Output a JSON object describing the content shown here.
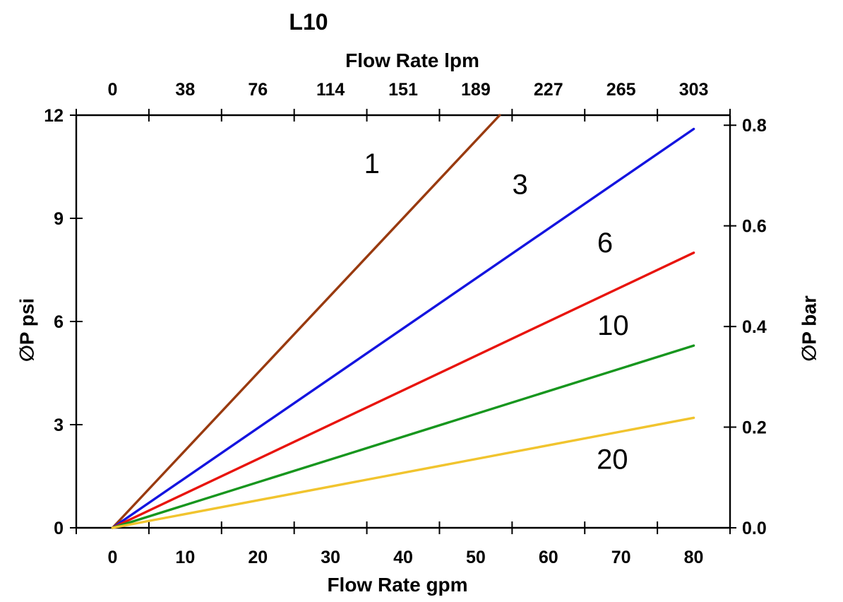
{
  "chart_data": {
    "type": "line",
    "title": "L10",
    "x_axis_bottom": {
      "label": "Flow Rate gpm",
      "tick_labels": [
        "0",
        "10",
        "20",
        "30",
        "40",
        "50",
        "60",
        "70",
        "80"
      ],
      "min": 0,
      "max": 80
    },
    "x_axis_top": {
      "label": "Flow Rate lpm",
      "tick_labels": [
        "0",
        "38",
        "76",
        "114",
        "151",
        "189",
        "227",
        "265",
        "303"
      ]
    },
    "y_axis_left": {
      "label": "∅P psi",
      "tick_labels": [
        "0",
        "3",
        "6",
        "9",
        "12"
      ],
      "min": 0,
      "max": 12
    },
    "y_axis_right": {
      "label": "∅P bar",
      "tick_labels": [
        "0.0",
        "0.2",
        "0.4",
        "0.6",
        "0.8"
      ],
      "min": 0,
      "max": 0.82
    },
    "grid": false,
    "legend": "none (series labeled inline)",
    "axis_style": "tick marks at category boundaries, labels centered between ticks; full plot border box",
    "series": [
      {
        "label": "1",
        "color": "#993A0F",
        "points_gpm_psi": [
          [
            0,
            0
          ],
          [
            53.3,
            12
          ]
        ],
        "note": "clipped at chart top; slope ~0.225 psi/gpm",
        "label_at_gpm_psi": [
          35.7,
          10.6
        ]
      },
      {
        "label": "3",
        "color": "#1414DF",
        "points_gpm_psi": [
          [
            0,
            0
          ],
          [
            80,
            11.6
          ]
        ],
        "label_at_gpm_psi": [
          56.1,
          10.0
        ]
      },
      {
        "label": "6",
        "color": "#E8140D",
        "points_gpm_psi": [
          [
            0,
            0
          ],
          [
            80,
            8.0
          ]
        ],
        "label_at_gpm_psi": [
          67.8,
          8.3
        ]
      },
      {
        "label": "10",
        "color": "#17961E",
        "points_gpm_psi": [
          [
            0,
            0
          ],
          [
            80,
            5.3
          ]
        ],
        "label_at_gpm_psi": [
          68.9,
          5.9
        ]
      },
      {
        "label": "20",
        "color": "#F1C42E",
        "points_gpm_psi": [
          [
            0,
            0
          ],
          [
            80,
            3.2
          ]
        ],
        "label_at_gpm_psi": [
          68.8,
          2.0
        ]
      }
    ]
  }
}
